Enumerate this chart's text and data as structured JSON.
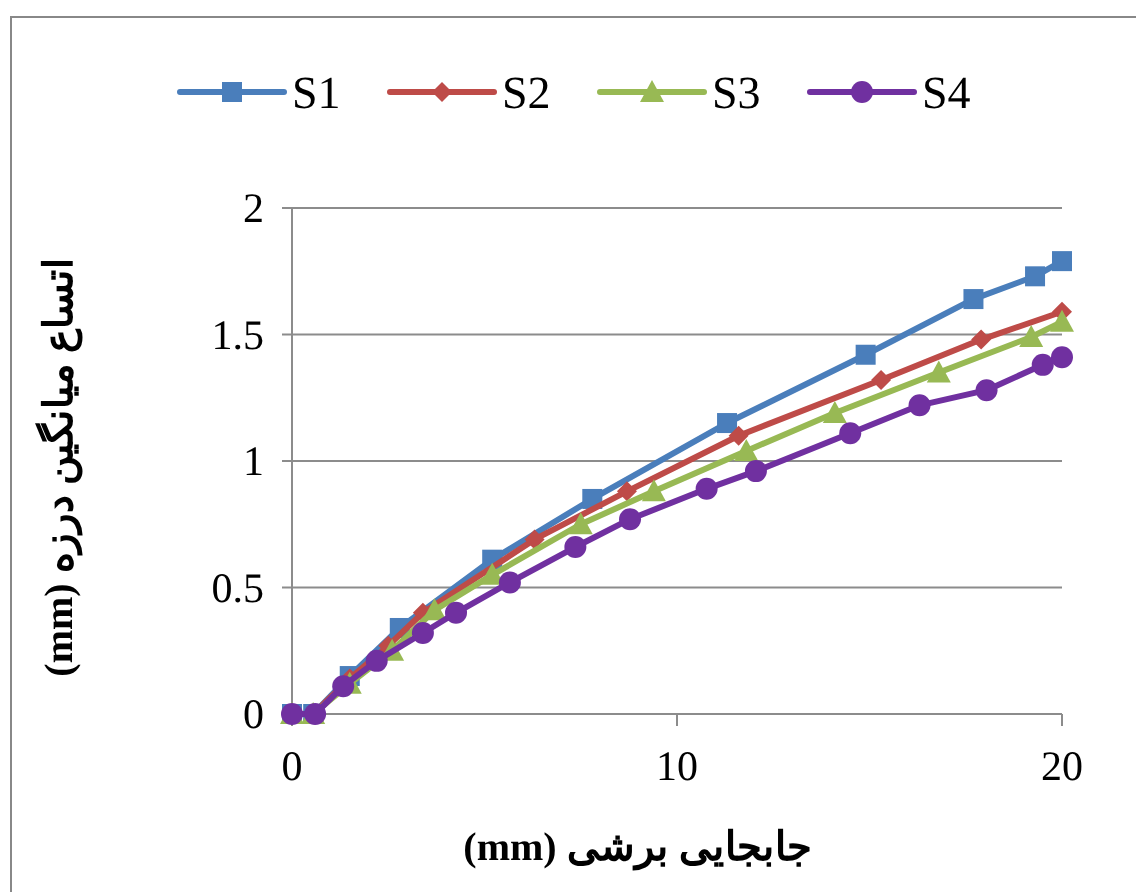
{
  "chart_data": {
    "type": "line",
    "xlabel": "جابجایی برشی  (mm)",
    "ylabel": "اتساع میانگین درزه (mm)",
    "xlim": [
      0,
      20
    ],
    "xticks": [
      0,
      10,
      20
    ],
    "ylim": [
      0,
      2
    ],
    "yticks": [
      0,
      0.5,
      1,
      1.5,
      2
    ],
    "grid": "y",
    "legend": "top",
    "series": [
      {
        "name": "S1",
        "color": "#4a7ebb",
        "marker": "square",
        "x": [
          0,
          0.55,
          1.5,
          2.8,
          5.2,
          7.8,
          11.3,
          14.9,
          17.7,
          19.3,
          20
        ],
        "values": [
          0,
          0,
          0.15,
          0.34,
          0.61,
          0.85,
          1.15,
          1.42,
          1.64,
          1.73,
          1.79
        ]
      },
      {
        "name": "S2",
        "color": "#be4b48",
        "marker": "diamond",
        "x": [
          0,
          0.55,
          1.5,
          2.5,
          3.4,
          6.3,
          8.7,
          11.6,
          15.3,
          17.9,
          20
        ],
        "values": [
          0,
          0,
          0.14,
          0.27,
          0.4,
          0.69,
          0.88,
          1.1,
          1.32,
          1.48,
          1.59
        ]
      },
      {
        "name": "S3",
        "color": "#98b954",
        "marker": "triangle",
        "x": [
          0,
          0.55,
          1.5,
          2.6,
          3.7,
          5.2,
          7.5,
          9.4,
          11.8,
          14.1,
          16.8,
          19.2,
          20
        ],
        "values": [
          0,
          0,
          0.12,
          0.25,
          0.41,
          0.55,
          0.75,
          0.88,
          1.04,
          1.19,
          1.35,
          1.49,
          1.55
        ]
      },
      {
        "name": "S4",
        "color": "#7030a0",
        "marker": "circle",
        "x": [
          0,
          0.6,
          1.33,
          2.2,
          3.4,
          4.26,
          5.66,
          7.36,
          8.78,
          10.77,
          12.05,
          14.5,
          16.3,
          18.04,
          19.5,
          20
        ],
        "values": [
          0,
          0,
          0.11,
          0.21,
          0.32,
          0.4,
          0.52,
          0.66,
          0.77,
          0.89,
          0.96,
          1.11,
          1.22,
          1.28,
          1.38,
          1.41
        ]
      }
    ]
  }
}
